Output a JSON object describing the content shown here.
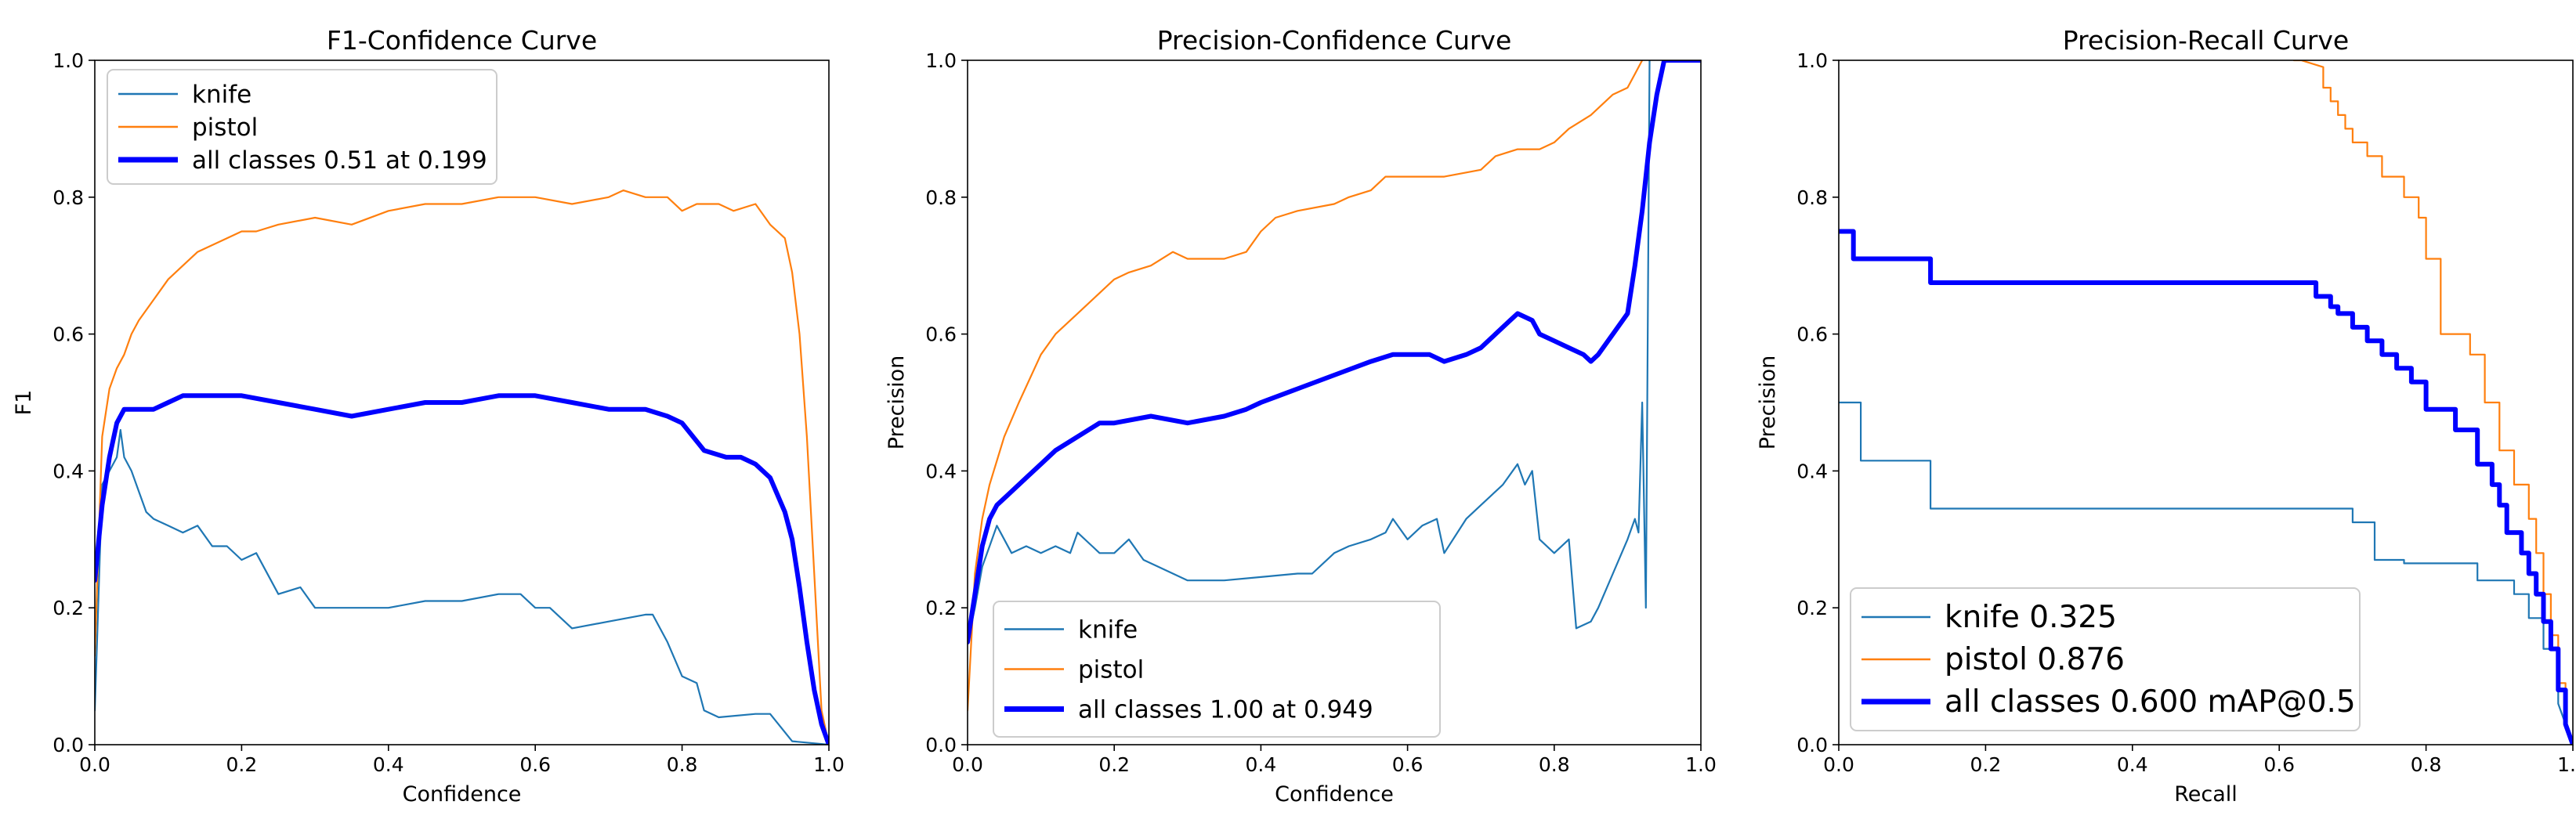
{
  "colors": {
    "knife": "#1f77b4",
    "pistol": "#ff7f0e",
    "all": "#0000ff",
    "axes": "#000000",
    "legend_border": "#cccccc"
  },
  "chart_data": [
    {
      "type": "line",
      "title": "F1-Confidence Curve",
      "xlabel": "Confidence",
      "ylabel": "F1",
      "xlim": [
        0,
        1
      ],
      "ylim": [
        0,
        1
      ],
      "xticks": [
        "0.0",
        "0.2",
        "0.4",
        "0.6",
        "0.8",
        "1.0"
      ],
      "yticks": [
        "0.0",
        "0.2",
        "0.4",
        "0.6",
        "0.8",
        "1.0"
      ],
      "legend_position": "upper-left",
      "series": [
        {
          "name": "knife",
          "legend": "knife",
          "key": "knife",
          "thick": false,
          "x": [
            0,
            0.01,
            0.02,
            0.03,
            0.035,
            0.04,
            0.05,
            0.06,
            0.07,
            0.08,
            0.1,
            0.12,
            0.14,
            0.16,
            0.18,
            0.2,
            0.22,
            0.25,
            0.28,
            0.3,
            0.35,
            0.4,
            0.45,
            0.5,
            0.55,
            0.58,
            0.6,
            0.62,
            0.65,
            0.7,
            0.75,
            0.76,
            0.78,
            0.8,
            0.82,
            0.83,
            0.85,
            0.9,
            0.92,
            0.95,
            1.0
          ],
          "y": [
            0.05,
            0.38,
            0.4,
            0.42,
            0.46,
            0.42,
            0.4,
            0.37,
            0.34,
            0.33,
            0.32,
            0.31,
            0.32,
            0.29,
            0.29,
            0.27,
            0.28,
            0.22,
            0.23,
            0.2,
            0.2,
            0.2,
            0.21,
            0.21,
            0.22,
            0.22,
            0.2,
            0.2,
            0.17,
            0.18,
            0.19,
            0.19,
            0.15,
            0.1,
            0.09,
            0.05,
            0.04,
            0.045,
            0.045,
            0.005,
            0.0
          ]
        },
        {
          "name": "pistol",
          "legend": "pistol",
          "key": "pistol",
          "thick": false,
          "x": [
            0,
            0.01,
            0.02,
            0.03,
            0.04,
            0.05,
            0.06,
            0.08,
            0.1,
            0.12,
            0.14,
            0.16,
            0.18,
            0.2,
            0.22,
            0.25,
            0.3,
            0.35,
            0.4,
            0.45,
            0.5,
            0.55,
            0.6,
            0.65,
            0.7,
            0.72,
            0.75,
            0.78,
            0.8,
            0.82,
            0.85,
            0.87,
            0.9,
            0.92,
            0.94,
            0.95,
            0.96,
            0.97,
            0.98,
            0.99,
            1.0
          ],
          "y": [
            0.13,
            0.45,
            0.52,
            0.55,
            0.57,
            0.6,
            0.62,
            0.65,
            0.68,
            0.7,
            0.72,
            0.73,
            0.74,
            0.75,
            0.75,
            0.76,
            0.77,
            0.76,
            0.78,
            0.79,
            0.79,
            0.8,
            0.8,
            0.79,
            0.8,
            0.81,
            0.8,
            0.8,
            0.78,
            0.79,
            0.79,
            0.78,
            0.79,
            0.76,
            0.74,
            0.69,
            0.6,
            0.45,
            0.25,
            0.05,
            0.0
          ]
        },
        {
          "name": "all classes",
          "legend": "all classes 0.51 at 0.199",
          "key": "all",
          "thick": true,
          "x": [
            0,
            0.01,
            0.02,
            0.03,
            0.04,
            0.06,
            0.08,
            0.1,
            0.12,
            0.15,
            0.2,
            0.25,
            0.3,
            0.35,
            0.4,
            0.45,
            0.5,
            0.55,
            0.6,
            0.65,
            0.7,
            0.72,
            0.75,
            0.78,
            0.8,
            0.83,
            0.86,
            0.88,
            0.9,
            0.92,
            0.94,
            0.95,
            0.96,
            0.97,
            0.98,
            0.99,
            1.0
          ],
          "y": [
            0.24,
            0.35,
            0.42,
            0.47,
            0.49,
            0.49,
            0.49,
            0.5,
            0.51,
            0.51,
            0.51,
            0.5,
            0.49,
            0.48,
            0.49,
            0.5,
            0.5,
            0.51,
            0.51,
            0.5,
            0.49,
            0.49,
            0.49,
            0.48,
            0.47,
            0.43,
            0.42,
            0.42,
            0.41,
            0.39,
            0.34,
            0.3,
            0.23,
            0.15,
            0.08,
            0.03,
            0.0
          ]
        }
      ]
    },
    {
      "type": "line",
      "title": "Precision-Confidence Curve",
      "xlabel": "Confidence",
      "ylabel": "Precision",
      "xlim": [
        0,
        1
      ],
      "ylim": [
        0,
        1
      ],
      "xticks": [
        "0.0",
        "0.2",
        "0.4",
        "0.6",
        "0.8",
        "1.0"
      ],
      "yticks": [
        "0.0",
        "0.2",
        "0.4",
        "0.6",
        "0.8",
        "1.0"
      ],
      "legend_position": "lower-left",
      "series": [
        {
          "name": "knife",
          "legend": "knife",
          "key": "knife",
          "thick": false,
          "x": [
            0,
            0.01,
            0.02,
            0.03,
            0.04,
            0.05,
            0.06,
            0.08,
            0.1,
            0.12,
            0.14,
            0.15,
            0.17,
            0.18,
            0.2,
            0.22,
            0.24,
            0.26,
            0.28,
            0.3,
            0.35,
            0.4,
            0.45,
            0.47,
            0.5,
            0.52,
            0.55,
            0.57,
            0.58,
            0.6,
            0.62,
            0.64,
            0.65,
            0.68,
            0.7,
            0.73,
            0.75,
            0.76,
            0.77,
            0.78,
            0.8,
            0.82,
            0.83,
            0.85,
            0.86,
            0.88,
            0.9,
            0.91,
            0.915,
            0.92,
            0.925,
            0.93
          ],
          "y": [
            0.15,
            0.2,
            0.26,
            0.29,
            0.32,
            0.3,
            0.28,
            0.29,
            0.28,
            0.29,
            0.28,
            0.31,
            0.29,
            0.28,
            0.28,
            0.3,
            0.27,
            0.26,
            0.25,
            0.24,
            0.24,
            0.245,
            0.25,
            0.25,
            0.28,
            0.29,
            0.3,
            0.31,
            0.33,
            0.3,
            0.32,
            0.33,
            0.28,
            0.33,
            0.35,
            0.38,
            0.41,
            0.38,
            0.4,
            0.3,
            0.28,
            0.3,
            0.17,
            0.18,
            0.2,
            0.25,
            0.3,
            0.33,
            0.31,
            0.5,
            0.2,
            1.0
          ]
        },
        {
          "name": "pistol",
          "legend": "pistol",
          "key": "pistol",
          "thick": false,
          "x": [
            0,
            0.01,
            0.02,
            0.03,
            0.05,
            0.07,
            0.1,
            0.12,
            0.15,
            0.18,
            0.2,
            0.22,
            0.25,
            0.28,
            0.3,
            0.35,
            0.38,
            0.4,
            0.42,
            0.45,
            0.5,
            0.52,
            0.55,
            0.57,
            0.6,
            0.65,
            0.7,
            0.72,
            0.75,
            0.78,
            0.8,
            0.82,
            0.85,
            0.87,
            0.88,
            0.9,
            0.91,
            0.92
          ],
          "y": [
            0.05,
            0.25,
            0.33,
            0.38,
            0.45,
            0.5,
            0.57,
            0.6,
            0.63,
            0.66,
            0.68,
            0.69,
            0.7,
            0.72,
            0.71,
            0.71,
            0.72,
            0.75,
            0.77,
            0.78,
            0.79,
            0.8,
            0.81,
            0.83,
            0.83,
            0.83,
            0.84,
            0.86,
            0.87,
            0.87,
            0.88,
            0.9,
            0.92,
            0.94,
            0.95,
            0.96,
            0.98,
            1.0
          ]
        },
        {
          "name": "all classes",
          "legend": "all classes 1.00 at 0.949",
          "key": "all",
          "thick": true,
          "x": [
            0,
            0.01,
            0.02,
            0.03,
            0.04,
            0.06,
            0.08,
            0.1,
            0.12,
            0.15,
            0.18,
            0.2,
            0.25,
            0.3,
            0.35,
            0.38,
            0.4,
            0.45,
            0.5,
            0.55,
            0.58,
            0.6,
            0.63,
            0.65,
            0.68,
            0.7,
            0.72,
            0.74,
            0.75,
            0.77,
            0.78,
            0.8,
            0.82,
            0.84,
            0.85,
            0.86,
            0.88,
            0.9,
            0.91,
            0.92,
            0.93,
            0.94,
            0.95,
            0.97,
            1.0
          ],
          "y": [
            0.15,
            0.22,
            0.29,
            0.33,
            0.35,
            0.37,
            0.39,
            0.41,
            0.43,
            0.45,
            0.47,
            0.47,
            0.48,
            0.47,
            0.48,
            0.49,
            0.5,
            0.52,
            0.54,
            0.56,
            0.57,
            0.57,
            0.57,
            0.56,
            0.57,
            0.58,
            0.6,
            0.62,
            0.63,
            0.62,
            0.6,
            0.59,
            0.58,
            0.57,
            0.56,
            0.57,
            0.6,
            0.63,
            0.7,
            0.78,
            0.88,
            0.95,
            1.0,
            1.0,
            1.0
          ]
        }
      ]
    },
    {
      "type": "line",
      "title": "Precision-Recall Curve",
      "xlabel": "Recall",
      "ylabel": "Precision",
      "xlim": [
        0,
        1
      ],
      "ylim": [
        0,
        1
      ],
      "xticks": [
        "0.0",
        "0.2",
        "0.4",
        "0.6",
        "0.8",
        "1.0"
      ],
      "yticks": [
        "0.0",
        "0.2",
        "0.4",
        "0.6",
        "0.8",
        "1.0"
      ],
      "legend_position": "lower-left",
      "series": [
        {
          "name": "knife",
          "legend": "knife 0.325",
          "key": "knife",
          "thick": false,
          "x": [
            0,
            0.03,
            0.03,
            0.125,
            0.125,
            0.7,
            0.7,
            0.73,
            0.73,
            0.77,
            0.77,
            0.87,
            0.87,
            0.92,
            0.92,
            0.94,
            0.94,
            0.96,
            0.96,
            0.98,
            0.98,
            1.0
          ],
          "y": [
            0.5,
            0.5,
            0.415,
            0.415,
            0.345,
            0.345,
            0.325,
            0.325,
            0.27,
            0.27,
            0.265,
            0.265,
            0.24,
            0.24,
            0.22,
            0.22,
            0.185,
            0.185,
            0.14,
            0.14,
            0.06,
            0.0
          ]
        },
        {
          "name": "pistol",
          "legend": "pistol 0.876",
          "key": "pistol",
          "thick": false,
          "x": [
            0.62,
            0.63,
            0.66,
            0.66,
            0.67,
            0.67,
            0.68,
            0.68,
            0.69,
            0.69,
            0.7,
            0.7,
            0.72,
            0.72,
            0.74,
            0.74,
            0.77,
            0.77,
            0.79,
            0.79,
            0.8,
            0.8,
            0.82,
            0.82,
            0.86,
            0.86,
            0.88,
            0.88,
            0.9,
            0.9,
            0.92,
            0.92,
            0.94,
            0.94,
            0.95,
            0.95,
            0.96,
            0.96,
            0.97,
            0.97,
            0.98,
            0.98,
            0.99,
            0.99,
            1.0
          ],
          "y": [
            1.0,
            1.0,
            0.99,
            0.96,
            0.96,
            0.94,
            0.94,
            0.92,
            0.92,
            0.9,
            0.9,
            0.88,
            0.88,
            0.86,
            0.86,
            0.83,
            0.83,
            0.8,
            0.8,
            0.77,
            0.77,
            0.71,
            0.71,
            0.6,
            0.6,
            0.57,
            0.57,
            0.5,
            0.5,
            0.43,
            0.43,
            0.38,
            0.38,
            0.33,
            0.33,
            0.28,
            0.28,
            0.22,
            0.22,
            0.16,
            0.16,
            0.09,
            0.09,
            0.03,
            0.0
          ]
        },
        {
          "name": "all classes",
          "legend": "all classes 0.600 mAP@0.5",
          "key": "all",
          "thick": true,
          "x": [
            0,
            0.02,
            0.02,
            0.125,
            0.125,
            0.65,
            0.65,
            0.67,
            0.67,
            0.68,
            0.68,
            0.7,
            0.7,
            0.72,
            0.72,
            0.74,
            0.74,
            0.76,
            0.76,
            0.78,
            0.78,
            0.8,
            0.8,
            0.84,
            0.84,
            0.87,
            0.87,
            0.89,
            0.89,
            0.9,
            0.9,
            0.91,
            0.91,
            0.93,
            0.93,
            0.94,
            0.94,
            0.95,
            0.95,
            0.96,
            0.96,
            0.97,
            0.97,
            0.98,
            0.98,
            0.99,
            0.99,
            1.0
          ],
          "y": [
            0.75,
            0.75,
            0.71,
            0.71,
            0.675,
            0.675,
            0.655,
            0.655,
            0.64,
            0.64,
            0.63,
            0.63,
            0.61,
            0.61,
            0.59,
            0.59,
            0.57,
            0.57,
            0.55,
            0.55,
            0.53,
            0.53,
            0.49,
            0.49,
            0.46,
            0.46,
            0.41,
            0.41,
            0.38,
            0.38,
            0.35,
            0.35,
            0.31,
            0.31,
            0.28,
            0.28,
            0.25,
            0.25,
            0.22,
            0.22,
            0.18,
            0.18,
            0.14,
            0.14,
            0.08,
            0.08,
            0.03,
            0.0
          ]
        }
      ]
    }
  ]
}
